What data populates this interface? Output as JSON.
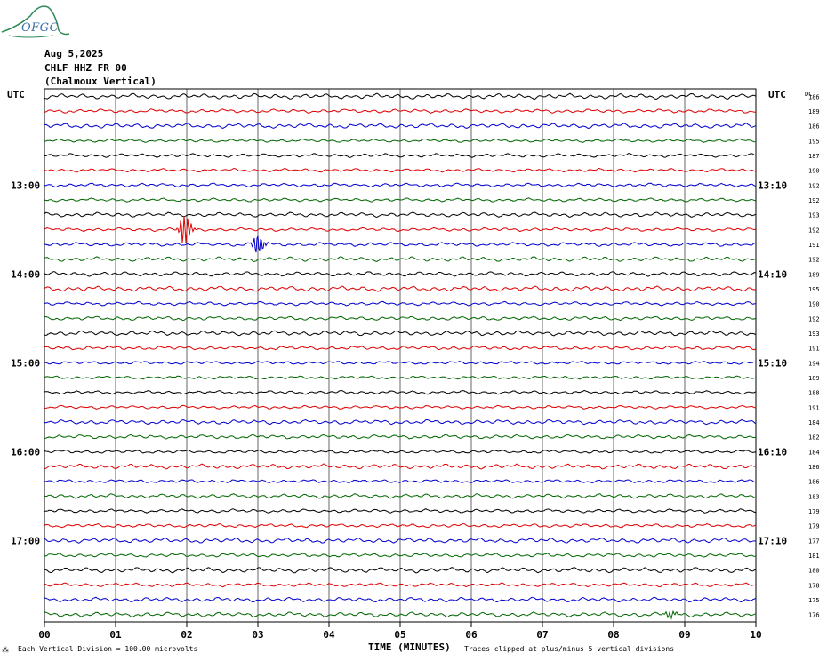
{
  "header": {
    "logo_text": "OFGC",
    "date": "Aug 5,2025",
    "station": "CHLF HHZ FR 00",
    "location": "(Chalmoux Vertical)"
  },
  "footer": {
    "scale_note": "Each Vertical Division = 100.00 microvolts",
    "clip_note": "Traces clipped at plus/minus 5 vertical divisions"
  },
  "colors": {
    "trace_cycle": [
      "#000000",
      "#dd0000",
      "#0000cc",
      "#006600"
    ],
    "grid": "#000000",
    "logo": "#2e8b57"
  },
  "chart_data": {
    "type": "line",
    "xlabel": "TIME (MINUTES)",
    "x_ticks": [
      "00",
      "01",
      "02",
      "03",
      "04",
      "05",
      "06",
      "07",
      "08",
      "09",
      "10"
    ],
    "xlim": [
      0,
      10
    ],
    "left_axis_label": "UTC",
    "right_axis_label": "UTC",
    "dc_label": "DC",
    "left_hour_labels": [
      {
        "label": "13:00",
        "row": 6
      },
      {
        "label": "14:00",
        "row": 12
      },
      {
        "label": "15:00",
        "row": 18
      },
      {
        "label": "16:00",
        "row": 24
      },
      {
        "label": "17:00",
        "row": 30
      }
    ],
    "right_hour_labels": [
      {
        "label": "13:10",
        "row": 6
      },
      {
        "label": "14:10",
        "row": 12
      },
      {
        "label": "15:10",
        "row": 18
      },
      {
        "label": "16:10",
        "row": 24
      },
      {
        "label": "17:10",
        "row": 30
      }
    ],
    "dc_offsets": [
      186,
      189,
      186,
      195,
      187,
      190,
      192,
      192,
      193,
      192,
      191,
      192,
      189,
      195,
      190,
      192,
      193,
      191,
      194,
      189,
      188,
      191,
      184,
      182,
      184,
      186,
      186,
      183,
      179,
      179,
      177,
      181,
      180,
      178,
      175,
      176
    ],
    "events": [
      {
        "row": 9,
        "minute": 1.95,
        "amplitude_divisions": 1.8
      },
      {
        "row": 10,
        "minute": 2.98,
        "amplitude_divisions": 1.2
      },
      {
        "row": 35,
        "minute": 8.78,
        "amplitude_divisions": 0.4
      }
    ]
  }
}
